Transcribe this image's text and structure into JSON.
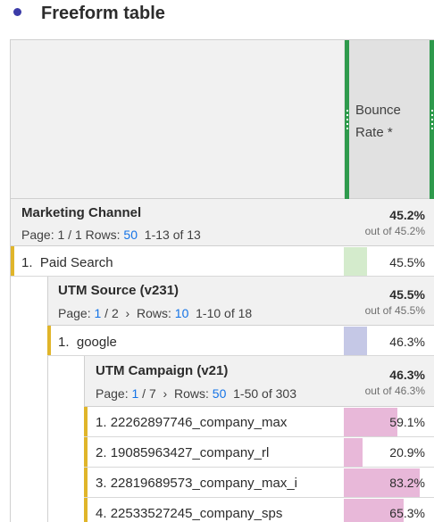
{
  "title": "Freeform table",
  "metric": {
    "label": "Bounce Rate *"
  },
  "level1": {
    "name": "Marketing Channel",
    "page_label": "Page:",
    "page": "1 / 1",
    "rows_label": "Rows:",
    "rows": "50",
    "range": "1-13 of 13",
    "total": "45.2%",
    "total_sub": "out of 45.2%",
    "row": {
      "index": "1.",
      "label": "Paid Search",
      "value": "45.5%",
      "fraction": 0.455,
      "bar_color": "#d4ebcc"
    }
  },
  "level2": {
    "name": "UTM Source (v231)",
    "page_label": "Page:",
    "page_current": "1",
    "page_total": "/ 2",
    "next_icon": "chevron-right-icon",
    "rows_label": "Rows:",
    "rows": "10",
    "range": "1-10 of 18",
    "total": "45.5%",
    "total_sub": "out of 45.5%",
    "row": {
      "index": "1.",
      "label": "google",
      "value": "46.3%",
      "fraction": 0.463,
      "bar_color": "#c5c8e6"
    }
  },
  "level3": {
    "name": "UTM Campaign (v21)",
    "page_label": "Page:",
    "page_current": "1",
    "page_total": "/ 7",
    "next_icon": "chevron-right-icon",
    "rows_label": "Rows:",
    "rows": "50",
    "range": "1-50 of 303",
    "total": "46.3%",
    "total_sub": "out of 46.3%",
    "bar_color": "#e8b8d9",
    "rows_data": [
      {
        "index": "1.",
        "label": "22262897746_company_max",
        "value": "59.1%",
        "fraction": 0.591
      },
      {
        "index": "2.",
        "label": "19085963427_company_rl",
        "value": "20.9%",
        "fraction": 0.209
      },
      {
        "index": "3.",
        "label": "22819689573_company_max_i",
        "value": "83.2%",
        "fraction": 0.832
      },
      {
        "index": "4.",
        "label": "22533527245_company_sps",
        "value": "65.3%",
        "fraction": 0.653
      }
    ]
  },
  "colors": {
    "accent_green": "#2e9a4c",
    "row_accent": "#e0b52a",
    "link": "#1473e6"
  }
}
